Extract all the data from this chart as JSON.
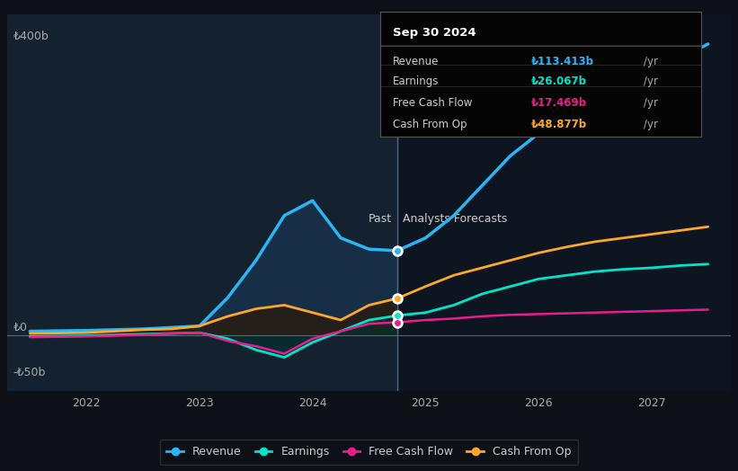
{
  "bg_color": "#0d1117",
  "plot_bg_color": "#0d1520",
  "title": "Sep 30 2024",
  "tooltip": {
    "Revenue": {
      "value": "₺113.413b",
      "color": "#29b6f6"
    },
    "Earnings": {
      "value": "₺26.067b",
      "color": "#00e5c9"
    },
    "Free Cash Flow": {
      "value": "₺17.469b",
      "color": "#e91e8c"
    },
    "Cash From Op": {
      "value": "₺48.877b",
      "color": "#ffa726"
    }
  },
  "ylabel_400": "₺400b",
  "ylabel_0": "₺0",
  "ylabel_neg50": "-₺50b",
  "past_label": "Past",
  "forecast_label": "Analysts Forecasts",
  "divider_x": 2024.75,
  "x_ticks": [
    2022,
    2023,
    2024,
    2025,
    2026,
    2027
  ],
  "revenue": {
    "x": [
      2021.5,
      2022.0,
      2022.25,
      2022.5,
      2022.75,
      2023.0,
      2023.25,
      2023.5,
      2023.75,
      2024.0,
      2024.25,
      2024.5,
      2024.75,
      2025.0,
      2025.25,
      2025.5,
      2025.75,
      2026.0,
      2026.25,
      2026.5,
      2026.75,
      2027.0,
      2027.25,
      2027.5
    ],
    "y": [
      5,
      6,
      7,
      8,
      10,
      12,
      50,
      100,
      160,
      180,
      130,
      115,
      113,
      130,
      160,
      200,
      240,
      270,
      290,
      310,
      330,
      350,
      370,
      390
    ],
    "color": "#29b6f6",
    "linewidth": 2.5
  },
  "earnings": {
    "x": [
      2021.5,
      2022.0,
      2022.25,
      2022.5,
      2022.75,
      2023.0,
      2023.25,
      2023.5,
      2023.75,
      2024.0,
      2024.25,
      2024.5,
      2024.75,
      2025.0,
      2025.25,
      2025.5,
      2025.75,
      2026.0,
      2026.25,
      2026.5,
      2026.75,
      2027.0,
      2027.25,
      2027.5
    ],
    "y": [
      -2,
      -1,
      0,
      1,
      2,
      3,
      -5,
      -20,
      -30,
      -10,
      5,
      20,
      26,
      30,
      40,
      55,
      65,
      75,
      80,
      85,
      88,
      90,
      93,
      95
    ],
    "color": "#00e5c9",
    "linewidth": 2.0
  },
  "free_cash_flow": {
    "x": [
      2021.5,
      2022.0,
      2022.25,
      2022.5,
      2022.75,
      2023.0,
      2023.25,
      2023.5,
      2023.75,
      2024.0,
      2024.25,
      2024.5,
      2024.75,
      2025.0,
      2025.25,
      2025.5,
      2025.75,
      2026.0,
      2026.25,
      2026.5,
      2026.75,
      2027.0,
      2027.25,
      2027.5
    ],
    "y": [
      -3,
      -2,
      -1,
      0,
      2,
      3,
      -8,
      -15,
      -25,
      -5,
      5,
      15,
      17,
      20,
      22,
      25,
      27,
      28,
      29,
      30,
      31,
      32,
      33,
      34
    ],
    "color": "#e91e8c",
    "linewidth": 1.8
  },
  "cash_from_op": {
    "x": [
      2021.5,
      2022.0,
      2022.25,
      2022.5,
      2022.75,
      2023.0,
      2023.25,
      2023.5,
      2023.75,
      2024.0,
      2024.25,
      2024.5,
      2024.75,
      2025.0,
      2025.25,
      2025.5,
      2025.75,
      2026.0,
      2026.25,
      2026.5,
      2026.75,
      2027.0,
      2027.25,
      2027.5
    ],
    "y": [
      2,
      3,
      5,
      7,
      8,
      12,
      25,
      35,
      40,
      30,
      20,
      40,
      49,
      65,
      80,
      90,
      100,
      110,
      118,
      125,
      130,
      135,
      140,
      145
    ],
    "color": "#ffa726",
    "linewidth": 2.0
  },
  "xlim": [
    2021.3,
    2027.7
  ],
  "ylim": [
    -75,
    430
  ]
}
